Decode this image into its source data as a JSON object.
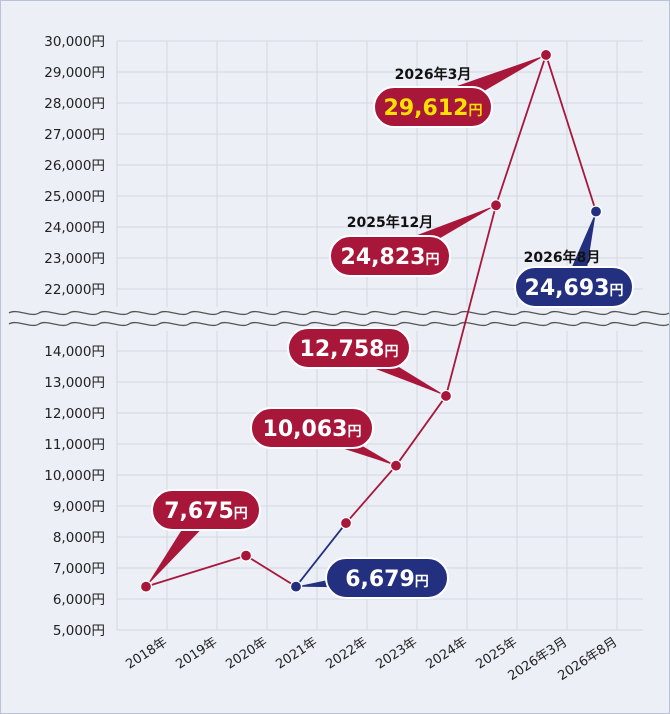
{
  "chart_data": {
    "type": "line",
    "categories": [
      "2018年",
      "2019年",
      "2020年",
      "2021年",
      "2022年",
      "2023年",
      "2024年",
      "2025年",
      "2026年3月",
      "2026年8月"
    ],
    "axis_break": {
      "lower_range": [
        5000,
        14000
      ],
      "upper_range": [
        22000,
        30000
      ]
    },
    "y_ticks_lower": [
      "5,000円",
      "6,000円",
      "7,000円",
      "8,000円",
      "9,000円",
      "10,000円",
      "11,000円",
      "12,000円",
      "13,000円",
      "14,000円"
    ],
    "y_ticks_upper": [
      "22,000円",
      "23,000円",
      "24,000円",
      "25,000円",
      "26,000円",
      "27,000円",
      "28,000円",
      "29,000円",
      "30,000円"
    ],
    "points": [
      {
        "x": 0.0,
        "y": 6400,
        "color": "#a8173a"
      },
      {
        "x": 2.0,
        "y": 7400,
        "color": "#a8173a"
      },
      {
        "x": 3.0,
        "y": 6400,
        "color": "#233080"
      },
      {
        "x": 4.0,
        "y": 8450,
        "color": "#a8173a"
      },
      {
        "x": 5.0,
        "y": 10300,
        "color": "#a8173a"
      },
      {
        "x": 6.0,
        "y": 12550,
        "color": "#a8173a"
      },
      {
        "x": 7.0,
        "y": 24700,
        "color": "#a8173a"
      },
      {
        "x": 8.0,
        "y": 29550,
        "color": "#a8173a"
      },
      {
        "x": 9.0,
        "y": 24500,
        "color": "#233080"
      }
    ],
    "callouts": [
      {
        "value": "7,675",
        "unit": "円",
        "caption": "",
        "color": "#a8173a"
      },
      {
        "value": "6,679",
        "unit": "円",
        "caption": "",
        "color": "#233080"
      },
      {
        "value": "10,063",
        "unit": "円",
        "caption": "",
        "color": "#a8173a"
      },
      {
        "value": "12,758",
        "unit": "円",
        "caption": "",
        "color": "#a8173a"
      },
      {
        "value": "24,823",
        "unit": "円",
        "caption": "2025年12月",
        "color": "#a8173a"
      },
      {
        "value": "29,612",
        "unit": "円",
        "caption": "2026年3月",
        "color": "#a8173a",
        "value_color": "#ffe000"
      },
      {
        "value": "24,693",
        "unit": "円",
        "caption": "2026年8月",
        "color": "#233080"
      }
    ],
    "grid": true
  }
}
